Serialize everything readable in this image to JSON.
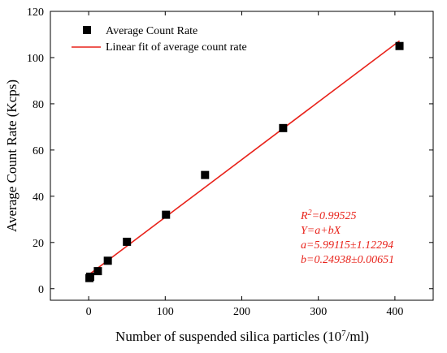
{
  "chart_data": {
    "type": "scatter",
    "xlabel": "Number of suspended silica particles (10",
    "xlabel_sup": "7",
    "xlabel_tail": "/ml)",
    "ylabel": "Average Count Rate (Kcps)",
    "xlim": [
      -50,
      450
    ],
    "ylim": [
      -5,
      120
    ],
    "x_ticks": [
      0,
      100,
      200,
      300,
      400
    ],
    "y_ticks": [
      0,
      20,
      40,
      60,
      80,
      100,
      120
    ],
    "x_tick_labels": [
      "0",
      "100",
      "200",
      "300",
      "400"
    ],
    "y_tick_labels": [
      "0",
      "20",
      "40",
      "60",
      "80",
      "100",
      "120"
    ],
    "legend_position": "top-left",
    "series": [
      {
        "name": "Average Count Rate",
        "kind": "scatter",
        "marker": "square",
        "color": "#000000",
        "x": [
          1,
          2,
          12,
          25,
          50,
          101,
          152,
          254,
          406
        ],
        "y": [
          4.6,
          5.2,
          7.6,
          12.1,
          20.3,
          32.0,
          49.2,
          69.5,
          105.0
        ]
      },
      {
        "name": "Linear fit of average count rate",
        "kind": "line",
        "color": "#e8221a",
        "x": [
          0,
          406
        ],
        "y": [
          5.99115,
          107.24
        ]
      }
    ],
    "annotations": {
      "r2_base": "R",
      "r2_sup": "2",
      "r2_value": "=0.99525",
      "equation": "Y=a+bX",
      "a_value": "a=5.99115±1.12294",
      "b_value": "b=0.24938±0.00651"
    }
  }
}
